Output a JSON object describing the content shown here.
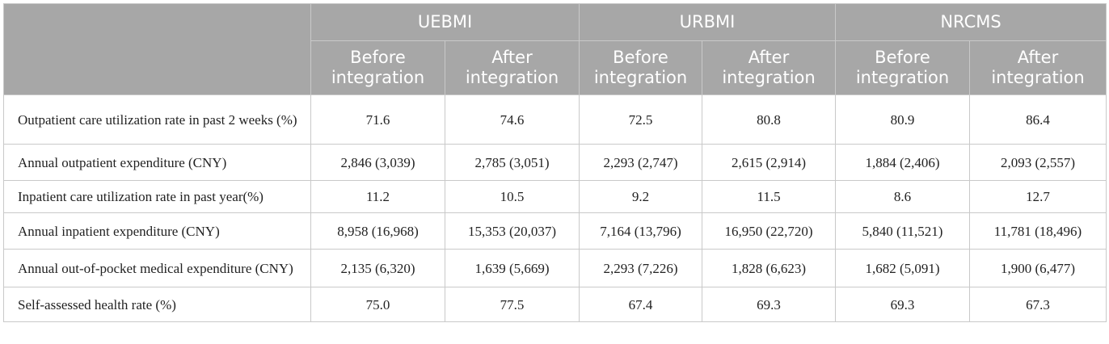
{
  "table": {
    "groups": [
      "UEBMI",
      "URBMI",
      "NRCMS"
    ],
    "subheaders": [
      "Before integration",
      "After integration",
      "Before integration",
      "After integration",
      "Before integration",
      "After integration"
    ],
    "rows": [
      {
        "label": "Outpatient care utilization rate in past 2 weeks (%)",
        "values": [
          "71.6",
          "74.6",
          "72.5",
          "80.8",
          "80.9",
          "86.4"
        ]
      },
      {
        "label": "Annual outpatient expenditure (CNY)",
        "values": [
          "2,846 (3,039)",
          "2,785 (3,051)",
          "2,293 (2,747)",
          "2,615 (2,914)",
          "1,884 (2,406)",
          "2,093 (2,557)"
        ]
      },
      {
        "label": "Inpatient care utilization rate in past year(%)",
        "values": [
          "11.2",
          "10.5",
          "9.2",
          "11.5",
          "8.6",
          "12.7"
        ]
      },
      {
        "label": "Annual inpatient expenditure (CNY)",
        "values": [
          "8,958 (16,968)",
          "15,353 (20,037)",
          "7,164 (13,796)",
          "16,950 (22,720)",
          "5,840 (11,521)",
          "11,781 (18,496)"
        ]
      },
      {
        "label": "Annual out-of-pocket medical expenditure (CNY)",
        "values": [
          "2,135 (6,320)",
          "1,639 (5,669)",
          "2,293 (7,226)",
          "1,828 (6,623)",
          "1,682 (5,091)",
          "1,900 (6,477)"
        ]
      },
      {
        "label": "Self-assessed health rate (%)",
        "values": [
          "75.0",
          "77.5",
          "67.4",
          "69.3",
          "69.3",
          "67.3"
        ]
      }
    ]
  }
}
